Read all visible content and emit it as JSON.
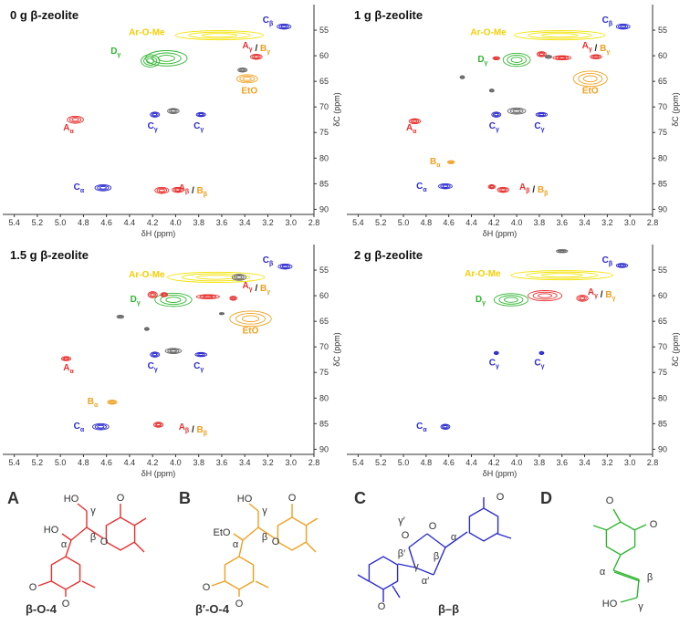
{
  "chart_data": [
    {
      "type": "contour",
      "title": "0 g β-zeolite",
      "xlabel": "δH (ppm)",
      "ylabel": "δC (ppm)",
      "xlim": [
        5.5,
        2.8
      ],
      "ylim": [
        50,
        91
      ],
      "xticks": [
        5.4,
        5.2,
        {
          "value": 5.0,
          "label": "5.0"
        },
        4.8,
        4.6,
        4.4,
        4.2,
        {
          "value": 4.0,
          "label": "4.0"
        },
        3.8,
        3.6,
        3.4,
        3.2,
        {
          "value": 3.0,
          "label": "3.0"
        },
        2.8
      ],
      "yticks": [
        55,
        60,
        65,
        70,
        75,
        80,
        85,
        90
      ],
      "series": [
        {
          "color": "#f2e200",
          "x": [
            3.62
          ],
          "y": [
            56
          ],
          "rx": [
            0.38
          ],
          "ry": [
            0.9
          ]
        },
        {
          "color": "#2b2bd0",
          "x": [
            3.06,
            4.18,
            3.78,
            4.63
          ],
          "y": [
            54.3,
            71.5,
            71.5,
            85.8
          ],
          "rx": [
            0.06,
            0.04,
            0.04,
            0.07
          ],
          "ry": [
            0.5,
            0.5,
            0.4,
            0.6
          ]
        },
        {
          "color": "#2fb52f",
          "x": [
            4.08,
            4.22
          ],
          "y": [
            60.5,
            61
          ],
          "rx": [
            0.18,
            0.08
          ],
          "ry": [
            1.5,
            1.2
          ]
        },
        {
          "color": "#e8302e",
          "x": [
            3.3,
            4.87,
            4.12,
            3.98
          ],
          "y": [
            60.2,
            72.5,
            86.3,
            86.2
          ],
          "rx": [
            0.05,
            0.07,
            0.06,
            0.05
          ],
          "ry": [
            0.5,
            0.7,
            0.6,
            0.5
          ]
        },
        {
          "color": "#f0a020",
          "x": [
            3.38
          ],
          "y": [
            64.5
          ],
          "rx": [
            0.09
          ],
          "ry": [
            0.8
          ]
        },
        {
          "color": "#666666",
          "x": [
            3.42,
            4.02
          ],
          "y": [
            62.8,
            70.8
          ],
          "rx": [
            0.04,
            0.05
          ],
          "ry": [
            0.4,
            0.5
          ]
        }
      ],
      "annotations": [
        [
          {
            "text": "Ar-O-Me",
            "color": "#f2cf00"
          }
        ],
        [
          {
            "text": "C",
            "sub": "β",
            "color": "#2b2bd0"
          }
        ],
        [
          {
            "text": "A",
            "sub": "γ",
            "color": "#e8302e"
          },
          {
            "text": " / ",
            "color": "#222222"
          },
          {
            "text": "B",
            "sub": "γ",
            "color": "#f0a020"
          }
        ],
        [
          {
            "text": "D",
            "sub": "γ",
            "color": "#2fb52f"
          }
        ],
        [
          {
            "text": "EtO",
            "color": "#f0a020"
          }
        ],
        [
          {
            "text": "A",
            "sub": "α",
            "color": "#e8302e"
          }
        ],
        [
          {
            "text": "C",
            "sub": "γ",
            "color": "#2b2bd0"
          }
        ],
        [
          {
            "text": "C",
            "sub": "γ",
            "color": "#2b2bd0"
          }
        ],
        [
          {
            "text": "C",
            "sub": "α",
            "color": "#2b2bd0"
          }
        ],
        [
          {
            "text": "A",
            "sub": "β",
            "color": "#e8302e"
          },
          {
            "text": " / ",
            "color": "#222222"
          },
          {
            "text": "B",
            "sub": "β",
            "color": "#f0a020"
          }
        ]
      ]
    },
    {
      "type": "contour",
      "title": "1 g β-zeolite",
      "xlabel": "δH (ppm)",
      "ylabel": "δC (ppm)",
      "xlim": [
        5.5,
        2.8
      ],
      "ylim": [
        50,
        91
      ],
      "xticks": [
        5.4,
        5.2,
        {
          "value": 5.0,
          "label": "5.0"
        },
        4.8,
        4.6,
        4.4,
        4.2,
        {
          "value": 4.0,
          "label": "4.0"
        },
        3.8,
        3.6,
        3.4,
        3.2,
        {
          "value": 3.0,
          "label": "3.0"
        },
        2.8
      ],
      "yticks": [
        55,
        60,
        65,
        70,
        75,
        80,
        85,
        90
      ],
      "series": [
        {
          "color": "#f2e200",
          "x": [
            3.62
          ],
          "y": [
            56
          ],
          "rx": [
            0.4
          ],
          "ry": [
            0.9
          ]
        },
        {
          "color": "#2b2bd0",
          "x": [
            3.06,
            4.18,
            3.78,
            4.63
          ],
          "y": [
            54.3,
            71.5,
            71.5,
            85.5
          ],
          "rx": [
            0.06,
            0.04,
            0.05,
            0.06
          ],
          "ry": [
            0.5,
            0.5,
            0.4,
            0.5
          ]
        },
        {
          "color": "#2fb52f",
          "x": [
            4.0
          ],
          "y": [
            60.8
          ],
          "rx": [
            0.12
          ],
          "ry": [
            1.3
          ]
        },
        {
          "color": "#e8302e",
          "x": [
            3.78,
            3.3,
            3.6,
            4.18,
            4.9,
            4.12,
            4.22
          ],
          "y": [
            59.7,
            60.2,
            60.4,
            60.5,
            72.8,
            86.2,
            85.6
          ],
          "rx": [
            0.04,
            0.05,
            0.08,
            0.03,
            0.05,
            0.05,
            0.03
          ],
          "ry": [
            0.5,
            0.4,
            0.4,
            0.3,
            0.5,
            0.5,
            0.4
          ]
        },
        {
          "color": "#f0a020",
          "x": [
            3.35,
            4.58
          ],
          "y": [
            64.5,
            80.8
          ],
          "rx": [
            0.15,
            0.03
          ],
          "ry": [
            1.5,
            0.3
          ]
        },
        {
          "color": "#666666",
          "x": [
            4.48,
            4.22,
            4.0,
            3.72
          ],
          "y": [
            64.2,
            66.8,
            70.8,
            60.2
          ],
          "rx": [
            0.02,
            0.02,
            0.08,
            0.03
          ],
          "ry": [
            0.3,
            0.3,
            0.6,
            0.3
          ]
        }
      ],
      "annotations": [
        [
          {
            "text": "Ar-O-Me",
            "color": "#f2cf00"
          }
        ],
        [
          {
            "text": "C",
            "sub": "β",
            "color": "#2b2bd0"
          }
        ],
        [
          {
            "text": "A",
            "sub": "γ",
            "color": "#e8302e"
          },
          {
            "text": " / ",
            "color": "#222222"
          },
          {
            "text": "B",
            "sub": "γ",
            "color": "#f0a020"
          }
        ],
        [
          {
            "text": "D",
            "sub": "γ",
            "color": "#2fb52f"
          }
        ],
        [
          {
            "text": "EtO",
            "color": "#f0a020"
          }
        ],
        [
          {
            "text": "A",
            "sub": "α",
            "color": "#e8302e"
          }
        ],
        [
          {
            "text": "C",
            "sub": "γ",
            "color": "#2b2bd0"
          }
        ],
        [
          {
            "text": "C",
            "sub": "γ",
            "color": "#2b2bd0"
          }
        ],
        [
          {
            "text": "B",
            "sub": "α",
            "color": "#f0a020"
          }
        ],
        [
          {
            "text": "C",
            "sub": "α",
            "color": "#2b2bd0"
          }
        ],
        [
          {
            "text": "A",
            "sub": "β",
            "color": "#e8302e"
          },
          {
            "text": " / ",
            "color": "#222222"
          },
          {
            "text": "B",
            "sub": "β",
            "color": "#f0a020"
          }
        ]
      ]
    },
    {
      "type": "contour",
      "title": "1.5 g β-zeolite",
      "xlabel": "δH (ppm)",
      "ylabel": "δC (ppm)",
      "xlim": [
        5.5,
        2.8
      ],
      "ylim": [
        50,
        91
      ],
      "xticks": [
        5.4,
        5.2,
        {
          "value": 5.0,
          "label": "5.0"
        },
        4.8,
        4.6,
        4.4,
        4.2,
        {
          "value": 4.0,
          "label": "4.0"
        },
        3.8,
        3.6,
        3.4,
        3.2,
        {
          "value": 3.0,
          "label": "3.0"
        },
        2.8
      ],
      "yticks": [
        55,
        60,
        65,
        70,
        75,
        80,
        85,
        90
      ],
      "series": [
        {
          "color": "#f2e200",
          "x": [
            3.65
          ],
          "y": [
            56.4
          ],
          "rx": [
            0.42
          ],
          "ry": [
            1.0
          ]
        },
        {
          "color": "#666666",
          "x": [
            3.45,
            4.48,
            4.25,
            4.02,
            3.6
          ],
          "y": [
            56.4,
            64.1,
            66.5,
            70.8,
            63.5
          ],
          "rx": [
            0.06,
            0.03,
            0.02,
            0.07,
            0.02
          ],
          "ry": [
            0.6,
            0.3,
            0.3,
            0.5,
            0.2
          ]
        },
        {
          "color": "#2b2bd0",
          "x": [
            3.05,
            4.18,
            3.78,
            4.65
          ],
          "y": [
            54.3,
            71.5,
            71.5,
            85.6
          ],
          "rx": [
            0.06,
            0.04,
            0.05,
            0.07
          ],
          "ry": [
            0.5,
            0.5,
            0.4,
            0.6
          ]
        },
        {
          "color": "#2fb52f",
          "x": [
            4.02
          ],
          "y": [
            60.8
          ],
          "rx": [
            0.16
          ],
          "ry": [
            1.3
          ]
        },
        {
          "color": "#e8302e",
          "x": [
            4.2,
            4.1,
            3.72,
            3.5,
            4.95,
            4.15
          ],
          "y": [
            59.8,
            59.8,
            60.2,
            60.5,
            72.3,
            85.2
          ],
          "rx": [
            0.04,
            0.03,
            0.1,
            0.03,
            0.04,
            0.04
          ],
          "ry": [
            0.6,
            0.4,
            0.4,
            0.4,
            0.4,
            0.5
          ]
        },
        {
          "color": "#f0a020",
          "x": [
            3.35,
            4.55
          ],
          "y": [
            64.5,
            80.8
          ],
          "rx": [
            0.18,
            0.04
          ],
          "ry": [
            1.5,
            0.4
          ]
        }
      ],
      "annotations": [
        [
          {
            "text": "Ar-O-Me",
            "color": "#f2cf00"
          }
        ],
        [
          {
            "text": "C",
            "sub": "β",
            "color": "#2b2bd0"
          }
        ],
        [
          {
            "text": "A",
            "sub": "γ",
            "color": "#e8302e"
          },
          {
            "text": " / ",
            "color": "#222222"
          },
          {
            "text": "B",
            "sub": "γ",
            "color": "#f0a020"
          }
        ],
        [
          {
            "text": "D",
            "sub": "γ",
            "color": "#2fb52f"
          }
        ],
        [
          {
            "text": "EtO",
            "color": "#f0a020"
          }
        ],
        [
          {
            "text": "A",
            "sub": "α",
            "color": "#e8302e"
          }
        ],
        [
          {
            "text": "C",
            "sub": "γ",
            "color": "#2b2bd0"
          }
        ],
        [
          {
            "text": "C",
            "sub": "γ",
            "color": "#2b2bd0"
          }
        ],
        [
          {
            "text": "B",
            "sub": "α",
            "color": "#f0a020"
          }
        ],
        [
          {
            "text": "C",
            "sub": "α",
            "color": "#2b2bd0"
          }
        ],
        [
          {
            "text": "A",
            "sub": "β",
            "color": "#e8302e"
          },
          {
            "text": " / ",
            "color": "#222222"
          },
          {
            "text": "B",
            "sub": "β",
            "color": "#f0a020"
          }
        ]
      ]
    },
    {
      "type": "contour",
      "title": "2 g β-zeolite",
      "xlabel": "δH (ppm)",
      "ylabel": "δC (ppm)",
      "xlim": [
        5.5,
        2.8
      ],
      "ylim": [
        50,
        91
      ],
      "xticks": [
        5.4,
        5.2,
        {
          "value": 5.0,
          "label": "5.0"
        },
        4.8,
        4.6,
        4.4,
        4.2,
        {
          "value": 4.0,
          "label": "4.0"
        },
        3.8,
        3.6,
        3.4,
        3.2,
        {
          "value": 3.0,
          "label": "3.0"
        },
        2.8
      ],
      "yticks": [
        55,
        60,
        65,
        70,
        75,
        80,
        85,
        90
      ],
      "series": [
        {
          "color": "#f2e200",
          "x": [
            3.6
          ],
          "y": [
            56
          ],
          "rx": [
            0.45
          ],
          "ry": [
            0.9
          ]
        },
        {
          "color": "#2b2bd0",
          "x": [
            3.07,
            4.18,
            3.78,
            4.63
          ],
          "y": [
            54.1,
            71.2,
            71.2,
            85.6
          ],
          "rx": [
            0.05,
            0.02,
            0.02,
            0.04
          ],
          "ry": [
            0.4,
            0.3,
            0.3,
            0.5
          ]
        },
        {
          "color": "#2fb52f",
          "x": [
            4.05
          ],
          "y": [
            60.8
          ],
          "rx": [
            0.15
          ],
          "ry": [
            1.2
          ]
        },
        {
          "color": "#e8302e",
          "x": [
            3.75,
            3.42
          ],
          "y": [
            60,
            60.5
          ],
          "rx": [
            0.15,
            0.05
          ],
          "ry": [
            1.0,
            0.6
          ]
        },
        {
          "color": "#666666",
          "x": [
            3.6
          ],
          "y": [
            51.3
          ],
          "rx": [
            0.05
          ],
          "ry": [
            0.3
          ]
        }
      ],
      "annotations": [
        [
          {
            "text": "Ar-O-Me",
            "color": "#f2cf00"
          }
        ],
        [
          {
            "text": "C",
            "sub": "β",
            "color": "#2b2bd0"
          }
        ],
        [
          {
            "text": "A",
            "sub": "γ",
            "color": "#e8302e"
          },
          {
            "text": " / ",
            "color": "#222222"
          },
          {
            "text": "B",
            "sub": "γ",
            "color": "#f0a020"
          }
        ],
        [
          {
            "text": "D",
            "sub": "γ",
            "color": "#2fb52f"
          }
        ],
        [
          {
            "text": "C",
            "sub": "γ",
            "color": "#2b2bd0"
          }
        ],
        [
          {
            "text": "C",
            "sub": "γ",
            "color": "#2b2bd0"
          }
        ],
        [
          {
            "text": "C",
            "sub": "α",
            "color": "#2b2bd0"
          }
        ]
      ]
    }
  ],
  "structures": [
    {
      "letter": "A",
      "name": "β-O-4",
      "color": "#e8302e",
      "atoms": [
        "HO",
        "HO",
        "α",
        "β",
        "γ",
        "O",
        "O",
        "O",
        "O"
      ]
    },
    {
      "letter": "B",
      "name": "β′-O-4",
      "color": "#f0a020",
      "atoms": [
        "HO",
        "EtO",
        "α",
        "β",
        "γ",
        "O",
        "O",
        "O",
        "O"
      ]
    },
    {
      "letter": "C",
      "name": "β–β",
      "color": "#2b2bd0",
      "atoms": [
        "O",
        "O",
        "α",
        "β",
        "β′",
        "α′",
        "γ",
        "γ′",
        "O",
        "O"
      ]
    },
    {
      "letter": "D",
      "color": "#2fb52f",
      "atoms": [
        "O",
        "O",
        "α",
        "β",
        "γ",
        "HO"
      ]
    }
  ]
}
